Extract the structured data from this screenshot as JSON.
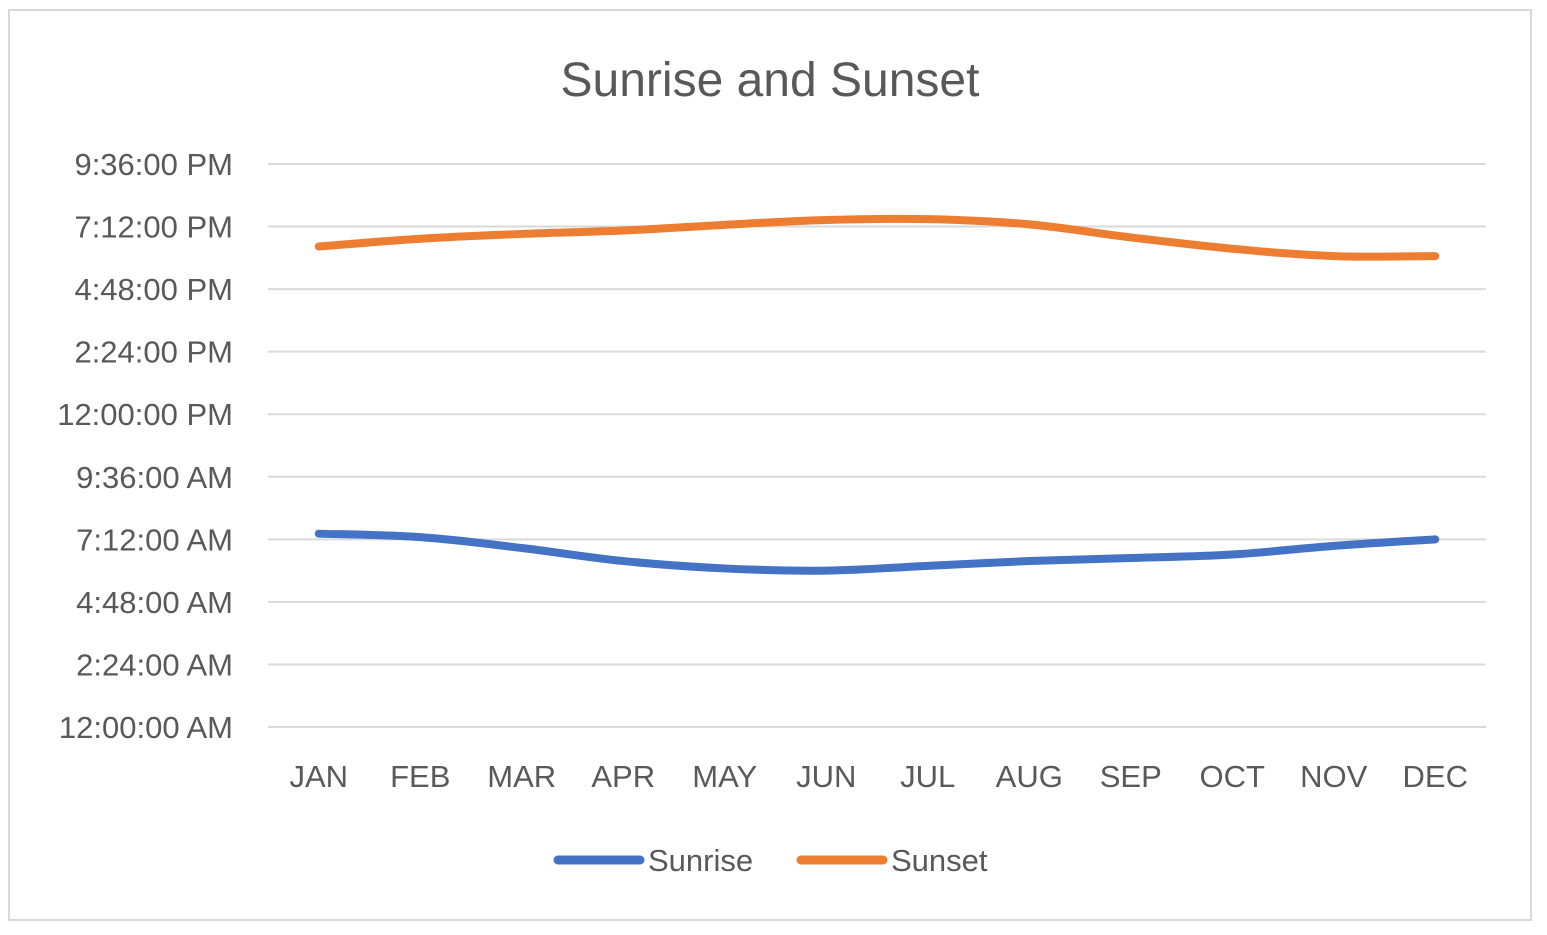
{
  "chart_data": {
    "type": "line",
    "title": "Sunrise and Sunset",
    "categories": [
      "JAN",
      "FEB",
      "MAR",
      "APR",
      "MAY",
      "JUN",
      "JUL",
      "AUG",
      "SEP",
      "OCT",
      "NOV",
      "DEC"
    ],
    "y_ticks": [
      "12:00:00 AM",
      "2:24:00 AM",
      "4:48:00 AM",
      "7:12:00 AM",
      "9:36:00 AM",
      "12:00:00 PM",
      "2:24:00 PM",
      "4:48:00 PM",
      "7:12:00 PM",
      "9:36:00 PM"
    ],
    "ylim": [
      "12:00:00 AM",
      "9:36:00 PM"
    ],
    "grid": true,
    "legend_position": "bottom",
    "series": [
      {
        "name": "Sunrise",
        "color": "#4472c4",
        "values": [
          "7:25 AM",
          "7:17 AM",
          "6:52 AM",
          "6:22 AM",
          "6:05 AM",
          "6:00 AM",
          "6:11 AM",
          "6:22 AM",
          "6:29 AM",
          "6:37 AM",
          "6:57 AM",
          "7:12 AM"
        ]
      },
      {
        "name": "Sunset",
        "color": "#ed7d31",
        "values": [
          "6:26 PM",
          "6:44 PM",
          "6:55 PM",
          "7:03 PM",
          "7:16 PM",
          "7:27 PM",
          "7:29 PM",
          "7:17 PM",
          "6:47 PM",
          "6:21 PM",
          "6:04 PM",
          "6:04 PM"
        ]
      }
    ]
  }
}
